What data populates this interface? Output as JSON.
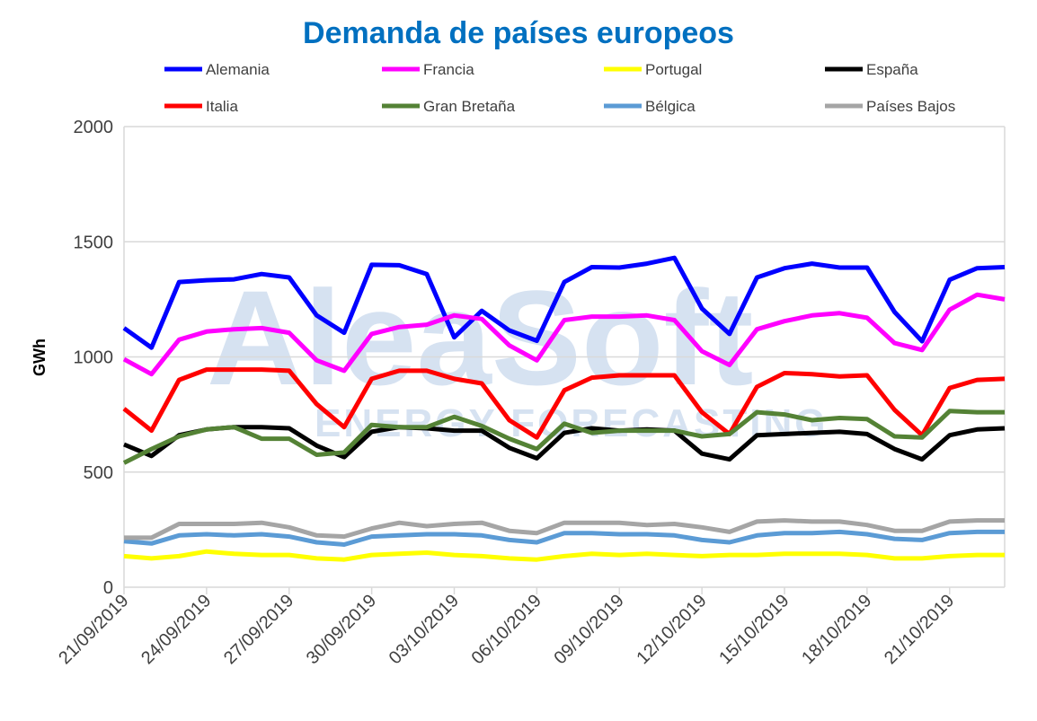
{
  "chart_data": {
    "type": "line",
    "title": "Demanda de países europeos",
    "ylabel": "GWh",
    "xlabel": "",
    "ylim": [
      0,
      2000
    ],
    "yticks": [
      0,
      500,
      1000,
      1500,
      2000
    ],
    "grid": true,
    "legend_placement": "top",
    "title_color": "#0070C0",
    "watermark": {
      "line1": "AleaSoft",
      "line2": "ENERGY FORECASTING",
      "color": "#d6e2f1"
    },
    "xtick_labels": [
      "21/09/2019",
      "24/09/2019",
      "27/09/2019",
      "30/09/2019",
      "03/10/2019",
      "06/10/2019",
      "09/10/2019",
      "12/10/2019",
      "15/10/2019",
      "18/10/2019",
      "21/10/2019"
    ],
    "x": [
      "21/09/2019",
      "22/09/2019",
      "23/09/2019",
      "24/09/2019",
      "25/09/2019",
      "26/09/2019",
      "27/09/2019",
      "28/09/2019",
      "29/09/2019",
      "30/09/2019",
      "01/10/2019",
      "02/10/2019",
      "03/10/2019",
      "04/10/2019",
      "05/10/2019",
      "06/10/2019",
      "07/10/2019",
      "08/10/2019",
      "09/10/2019",
      "10/10/2019",
      "11/10/2019",
      "12/10/2019",
      "13/10/2019",
      "14/10/2019",
      "15/10/2019",
      "16/10/2019",
      "17/10/2019",
      "18/10/2019",
      "19/10/2019",
      "20/10/2019",
      "21/10/2019",
      "22/10/2019",
      "23/10/2019"
    ],
    "series": [
      {
        "name": "Alemania",
        "color": "#0000FF",
        "values": [
          1125,
          1040,
          1325,
          1333,
          1337,
          1360,
          1345,
          1180,
          1105,
          1400,
          1398,
          1360,
          1085,
          1200,
          1115,
          1070,
          1325,
          1390,
          1388,
          1405,
          1430,
          1210,
          1100,
          1345,
          1385,
          1405,
          1388,
          1388,
          1195,
          1068,
          1335,
          1385,
          1390
        ]
      },
      {
        "name": "Francia",
        "color": "#FF00FF",
        "values": [
          990,
          925,
          1075,
          1110,
          1120,
          1125,
          1105,
          985,
          940,
          1100,
          1130,
          1140,
          1180,
          1165,
          1050,
          985,
          1160,
          1175,
          1175,
          1180,
          1160,
          1025,
          965,
          1120,
          1155,
          1180,
          1190,
          1170,
          1060,
          1030,
          1205,
          1270,
          1250
        ]
      },
      {
        "name": "Portugal",
        "color": "#FFFF00",
        "values": [
          135,
          125,
          135,
          155,
          145,
          140,
          140,
          125,
          120,
          140,
          145,
          150,
          140,
          135,
          125,
          120,
          135,
          145,
          140,
          145,
          140,
          135,
          140,
          140,
          145,
          145,
          145,
          140,
          125,
          125,
          135,
          140,
          140
        ]
      },
      {
        "name": "España",
        "color": "#000000",
        "values": [
          620,
          570,
          660,
          685,
          695,
          695,
          690,
          615,
          565,
          675,
          695,
          690,
          680,
          680,
          605,
          560,
          670,
          690,
          680,
          685,
          680,
          580,
          555,
          660,
          665,
          670,
          675,
          665,
          600,
          555,
          660,
          685,
          690
        ]
      },
      {
        "name": "Italia",
        "color": "#FF0000",
        "values": [
          775,
          680,
          900,
          945,
          945,
          945,
          940,
          795,
          695,
          905,
          940,
          940,
          905,
          885,
          725,
          650,
          855,
          910,
          920,
          920,
          920,
          760,
          665,
          870,
          930,
          925,
          915,
          920,
          770,
          660,
          865,
          900,
          905
        ]
      },
      {
        "name": "Gran Bretaña",
        "color": "#548235",
        "values": [
          540,
          600,
          655,
          685,
          695,
          645,
          645,
          575,
          585,
          705,
          695,
          695,
          740,
          700,
          645,
          600,
          710,
          670,
          680,
          680,
          680,
          655,
          665,
          760,
          750,
          725,
          735,
          730,
          655,
          650,
          765,
          760,
          760
        ]
      },
      {
        "name": "Bélgica",
        "color": "#5B9BD5",
        "values": [
          200,
          190,
          225,
          230,
          225,
          230,
          220,
          195,
          185,
          220,
          225,
          230,
          230,
          225,
          205,
          195,
          235,
          235,
          230,
          230,
          225,
          205,
          195,
          225,
          235,
          235,
          240,
          230,
          210,
          205,
          235,
          240,
          240
        ]
      },
      {
        "name": "Países Bajos",
        "color": "#A5A5A5",
        "values": [
          215,
          215,
          275,
          275,
          275,
          280,
          260,
          225,
          220,
          255,
          280,
          265,
          275,
          280,
          245,
          235,
          280,
          280,
          280,
          270,
          275,
          260,
          240,
          285,
          290,
          285,
          285,
          270,
          245,
          245,
          285,
          290,
          290
        ]
      }
    ]
  }
}
